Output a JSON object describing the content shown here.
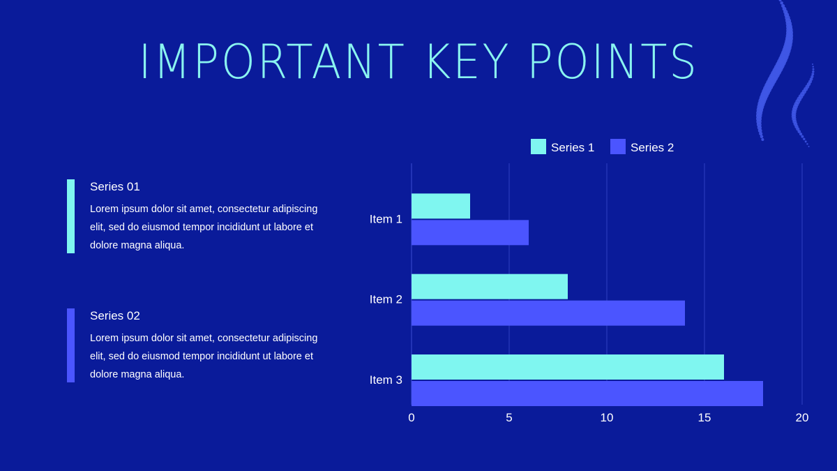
{
  "slide": {
    "title": "IMPORTANT KEY POINTS",
    "background": "#0a1b9a"
  },
  "blocks": [
    {
      "heading": "Series 01",
      "text": "Lorem ipsum dolor sit amet, consectetur adipiscing elit, sed do eiusmod tempor incididunt ut labore et dolore magna aliqua.",
      "accent": "#7ff6f0"
    },
    {
      "heading": "Series 02",
      "text": "Lorem ipsum dolor sit amet, consectetur adipiscing elit, sed do eiusmod tempor incididunt ut labore et dolore magna aliqua.",
      "accent": "#4b55ff"
    }
  ],
  "chart_data": {
    "type": "bar",
    "orientation": "horizontal",
    "categories": [
      "Item 1",
      "Item 2",
      "Item 3"
    ],
    "series": [
      {
        "name": "Series 1",
        "values": [
          3,
          8,
          16
        ],
        "color": "#7ff6f0"
      },
      {
        "name": "Series 2",
        "values": [
          6,
          14,
          18
        ],
        "color": "#4b55ff"
      }
    ],
    "xlim": [
      0,
      20
    ],
    "xticks": [
      0,
      5,
      10,
      15,
      20
    ],
    "grid": true,
    "legend": "top"
  }
}
